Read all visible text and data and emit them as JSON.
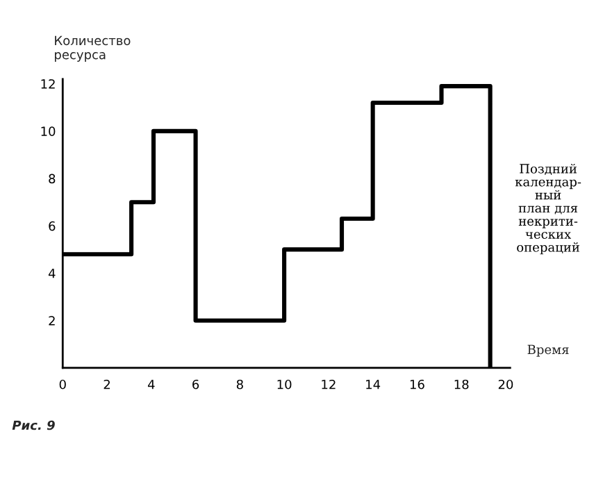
{
  "chart_data": {
    "type": "step",
    "ylabel": "Количество\nресурса",
    "xlabel": "Время",
    "x": [
      0,
      3.1,
      4.1,
      6,
      10,
      12.6,
      14,
      17.1,
      19.3
    ],
    "series": [
      {
        "name": "Поздний\nкалендар-\nный\nплан для\nнекрити-\nческих\nопераций",
        "color": "#000000",
        "values": [
          4.8,
          7,
          10,
          2,
          5,
          6.3,
          11.2,
          11.9,
          0
        ]
      }
    ],
    "xlim": [
      0,
      20.2
    ],
    "xticks": [
      0,
      2,
      4,
      6,
      8,
      10,
      12,
      14,
      16,
      18,
      20
    ],
    "ylim": [
      0,
      12.2
    ],
    "yticks": [
      2,
      4,
      6,
      8,
      10,
      12
    ],
    "grid": false,
    "legend": "right",
    "annotations": [
      "Рис. 9"
    ]
  }
}
